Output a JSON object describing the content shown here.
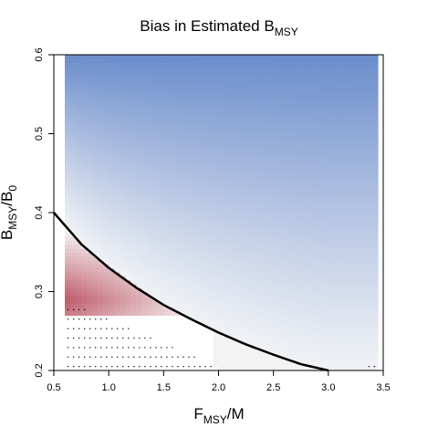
{
  "chart_data": {
    "type": "heatmap",
    "title": {
      "main": "Bias in Estimated B",
      "sub": "MSY"
    },
    "xlabel": {
      "main": "F",
      "sub": "MSY",
      "rest": "/M"
    },
    "ylabel": {
      "main": "B",
      "sub": "MSY",
      "mid": "/B",
      "sub2": "0"
    },
    "xlim": [
      0.5,
      3.5
    ],
    "ylim": [
      0.2,
      0.6
    ],
    "x_ticks": [
      "0.5",
      "1.0",
      "1.5",
      "2.0",
      "2.5",
      "3.0",
      "3.5"
    ],
    "y_ticks": [
      "0.2",
      "0.3",
      "0.4",
      "0.5",
      "0.6"
    ],
    "grid": false,
    "colors": {
      "negative_bias": "#c0606f",
      "neutral": "#f7f7f7",
      "positive_bias": "#5f84c8",
      "curve": "#000000",
      "stipple": "#000000"
    },
    "boundary_curve": {
      "x": [
        0.5,
        0.75,
        1.0,
        1.25,
        1.5,
        1.75,
        2.0,
        2.25,
        2.5,
        2.75,
        3.0
      ],
      "y": [
        0.4,
        0.36,
        0.33,
        0.305,
        0.283,
        0.265,
        0.248,
        0.233,
        0.22,
        0.208,
        0.2
      ]
    },
    "field_x_range": [
      0.6,
      3.45
    ],
    "stippled_region": {
      "x_range": [
        0.6,
        1.95
      ],
      "y_top": 0.29,
      "note_region_x": [
        3.35,
        3.45
      ]
    }
  }
}
